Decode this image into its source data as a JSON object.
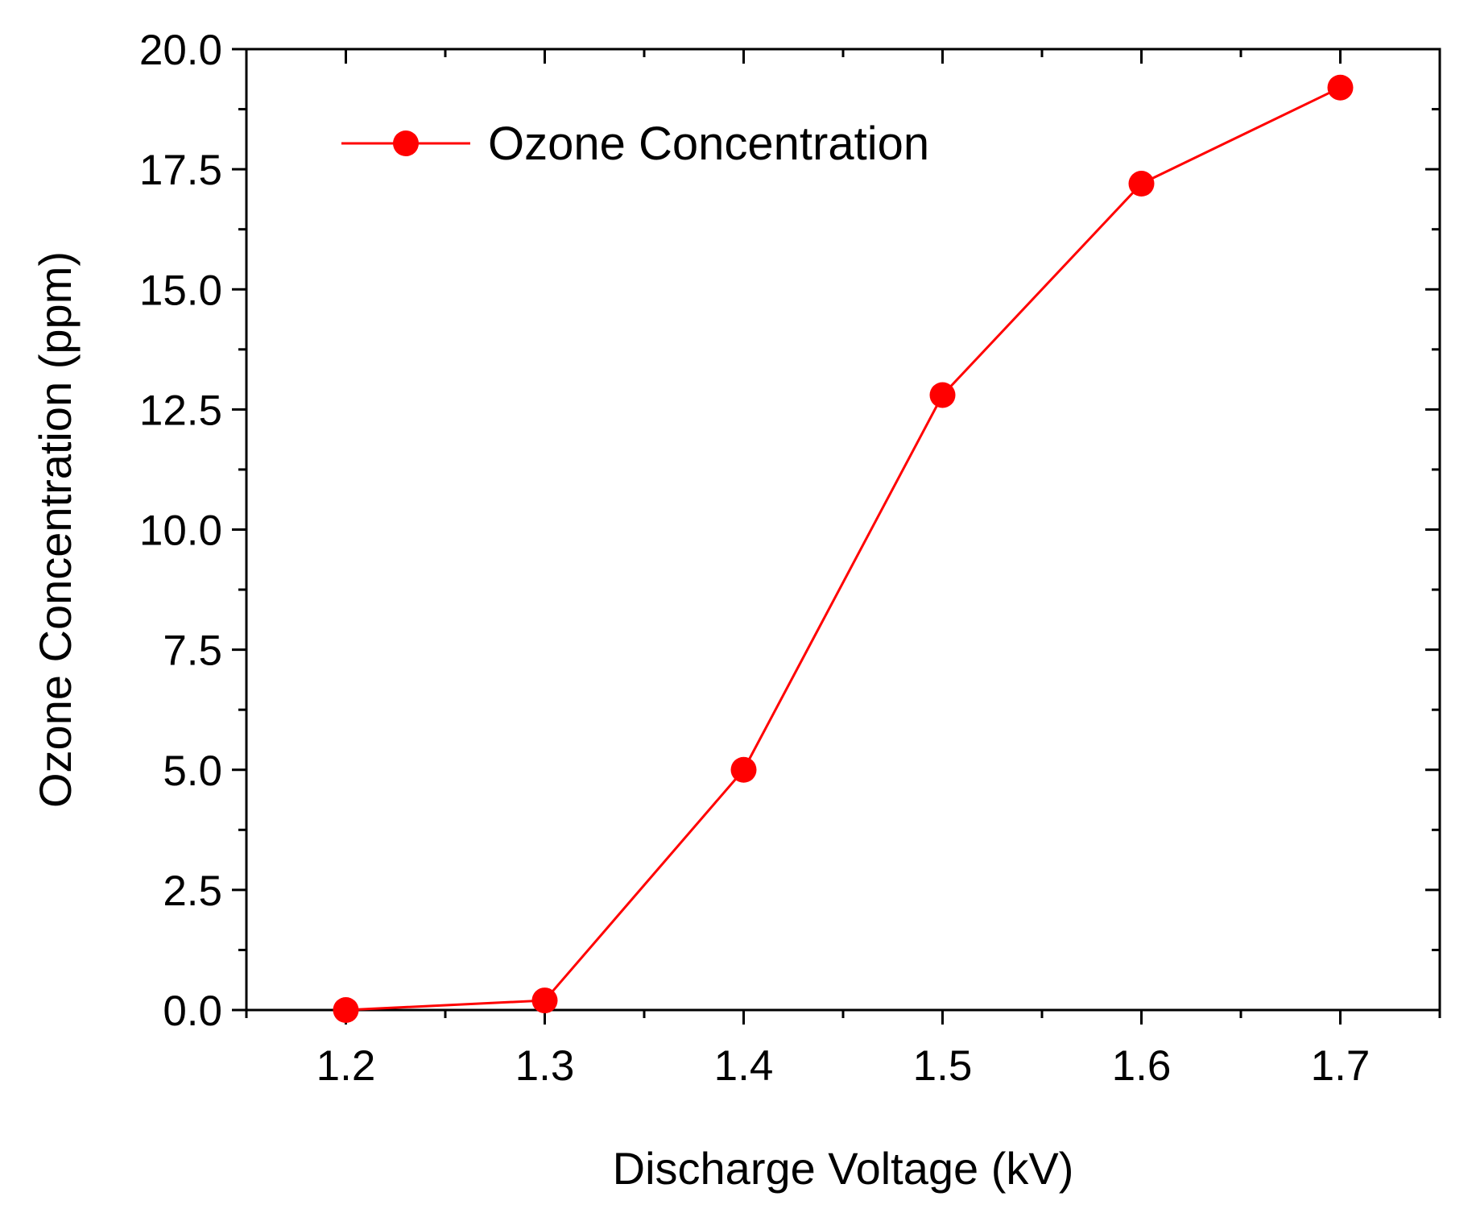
{
  "chart_data": {
    "type": "line",
    "title": "",
    "xlabel": "Discharge Voltage (kV)",
    "ylabel": "Ozone Concentration (ppm)",
    "xlim": [
      1.15,
      1.75
    ],
    "ylim": [
      0.0,
      20.0
    ],
    "x_ticks": [
      1.2,
      1.3,
      1.4,
      1.5,
      1.6,
      1.7
    ],
    "x_tick_labels": [
      "1.2",
      "1.3",
      "1.4",
      "1.5",
      "1.6",
      "1.7"
    ],
    "x_minor_ticks": [
      1.15,
      1.25,
      1.35,
      1.45,
      1.55,
      1.65,
      1.75
    ],
    "y_ticks": [
      0.0,
      2.5,
      5.0,
      7.5,
      10.0,
      12.5,
      15.0,
      17.5,
      20.0
    ],
    "y_tick_labels": [
      "0.0",
      "2.5",
      "5.0",
      "7.5",
      "10.0",
      "12.5",
      "15.0",
      "17.5",
      "20.0"
    ],
    "y_minor_ticks": [
      1.25,
      3.75,
      6.25,
      8.75,
      11.25,
      13.75,
      16.25,
      18.75
    ],
    "grid": false,
    "legend_position": "top-left",
    "series": [
      {
        "name": "Ozone Concentration",
        "color": "#ff0000",
        "marker": "circle",
        "x": [
          1.2,
          1.3,
          1.4,
          1.5,
          1.6,
          1.7
        ],
        "values": [
          0.0,
          0.2,
          5.0,
          12.8,
          17.2,
          19.2
        ]
      }
    ]
  }
}
